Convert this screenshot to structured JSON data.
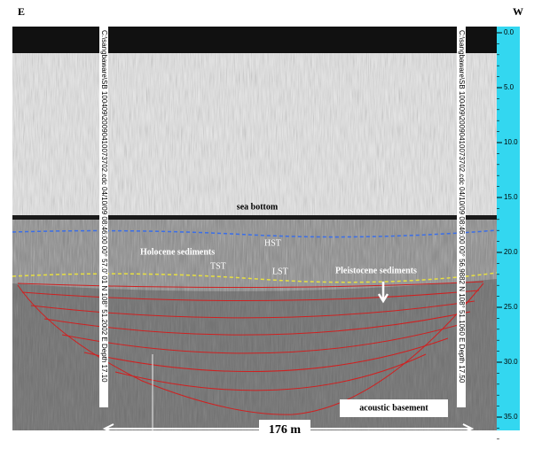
{
  "header": {
    "left": "E",
    "right": "W"
  },
  "labels": {
    "sea_bottom": "sea bottom",
    "hst": "HST",
    "holocene": "Holocene sediments",
    "tst": "TST",
    "lst": "LST",
    "pleistocene": "Pleistocene sediments",
    "basement": "acoustic basement",
    "distance": "176 m"
  },
  "track_labels": {
    "left": "C:\\sangbaware\\SB 100409\\20090410073702.cdc 04/10/09 08:46:00 00° 57.0' 01 N 108° 51.2002 E Depth 17.10",
    "right": "C:\\sangbaware\\SB 100409\\20090410073702.cdc 04/10/09 08:46:00 00° 56.9882 N 108° 51.1060 E Depth 17.50"
  },
  "depth_ticks": [
    "0.0",
    "5.0",
    "10.0",
    "15.0",
    "20.0",
    "25.0",
    "30.0",
    "35.0"
  ]
}
